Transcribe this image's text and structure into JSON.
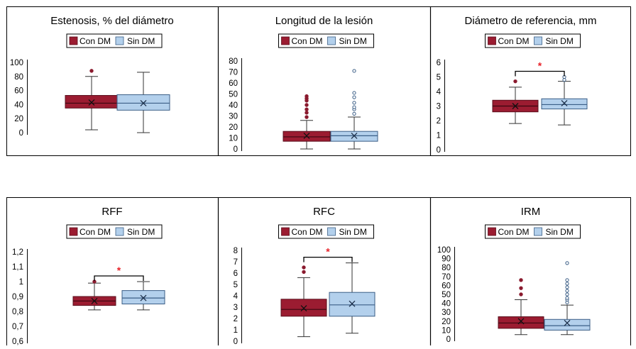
{
  "colors": {
    "con_dm_fill": "#9b1c31",
    "sin_dm_fill": "#b3d0ec",
    "sin_dm_stroke": "#3b5e86",
    "outlier_con": "#8a1a2e",
    "outlier_sin": "#3b5e86",
    "significance": "#e8242b",
    "frame": "#000000"
  },
  "chart_data": [
    {
      "type": "box",
      "title": "Estenosis, % del diámetro",
      "legend": [
        "Con DM",
        "Sin DM"
      ],
      "legend_placement": "top",
      "ylim": [
        0,
        100
      ],
      "yticks": [
        "0",
        "20",
        "40",
        "60",
        "80",
        "100"
      ],
      "ytick_values": [
        0,
        20,
        40,
        60,
        80,
        100
      ],
      "significance": "",
      "series": [
        {
          "name": "Con DM",
          "min": 4,
          "q1": 35,
          "median": 42,
          "mean": 43,
          "q3": 53,
          "max": 80,
          "outliers": [
            88
          ]
        },
        {
          "name": "Sin DM",
          "min": 0,
          "q1": 32,
          "median": 42,
          "mean": 42,
          "q3": 54,
          "max": 86,
          "outliers": []
        }
      ]
    },
    {
      "type": "box",
      "title": "Longitud de la lesión",
      "legend": [
        "Con DM",
        "Sin DM"
      ],
      "legend_placement": "top",
      "ylim": [
        0,
        80
      ],
      "yticks": [
        "0",
        "10",
        "20",
        "30",
        "40",
        "50",
        "60",
        "70",
        "80"
      ],
      "ytick_values": [
        0,
        10,
        20,
        30,
        40,
        50,
        60,
        70,
        80
      ],
      "significance": "",
      "series": [
        {
          "name": "Con DM",
          "min": 0,
          "q1": 7,
          "median": 11,
          "mean": 12,
          "q3": 16,
          "max": 26,
          "outliers": [
            29,
            33,
            36,
            40,
            44,
            46,
            48
          ]
        },
        {
          "name": "Sin DM",
          "min": 0,
          "q1": 7,
          "median": 12,
          "mean": 12,
          "q3": 16,
          "max": 29,
          "outliers": [
            32,
            36,
            38,
            42,
            47,
            51,
            71
          ]
        }
      ]
    },
    {
      "type": "box",
      "title": "Diámetro de referencia, mm",
      "legend": [
        "Con DM",
        "Sin DM"
      ],
      "legend_placement": "top",
      "ylim": [
        0,
        6
      ],
      "yticks": [
        "0",
        "1",
        "2",
        "3",
        "4",
        "5",
        "6"
      ],
      "ytick_values": [
        0,
        1,
        2,
        3,
        4,
        5,
        6
      ],
      "significance": "*",
      "series": [
        {
          "name": "Con DM",
          "min": 1.8,
          "q1": 2.6,
          "median": 3.0,
          "mean": 3.0,
          "q3": 3.4,
          "max": 4.3,
          "outliers": [
            4.7
          ]
        },
        {
          "name": "Sin DM",
          "min": 1.7,
          "q1": 2.8,
          "median": 3.1,
          "mean": 3.2,
          "q3": 3.5,
          "max": 4.7,
          "outliers": [
            4.8,
            5.0
          ]
        }
      ]
    },
    {
      "type": "box",
      "title": "RFF",
      "legend": [
        "Con DM",
        "Sin DM"
      ],
      "legend_placement": "top",
      "ylim": [
        0.6,
        1.2
      ],
      "yticks": [
        "0,6",
        "0,7",
        "0,8",
        "0,9",
        "1",
        "1,1",
        "1,2"
      ],
      "ytick_values": [
        0.6,
        0.7,
        0.8,
        0.9,
        1.0,
        1.1,
        1.2
      ],
      "significance": "*",
      "series": [
        {
          "name": "Con DM",
          "min": 0.81,
          "q1": 0.84,
          "median": 0.87,
          "mean": 0.87,
          "q3": 0.9,
          "max": 0.99,
          "outliers": [
            1.0
          ]
        },
        {
          "name": "Sin DM",
          "min": 0.81,
          "q1": 0.85,
          "median": 0.89,
          "mean": 0.89,
          "q3": 0.94,
          "max": 1.0,
          "outliers": []
        }
      ]
    },
    {
      "type": "box",
      "title": "RFC",
      "legend": [
        "Con DM",
        "Sin DM"
      ],
      "legend_placement": "top",
      "ylim": [
        0,
        8
      ],
      "yticks": [
        "0",
        "1",
        "2",
        "3",
        "4",
        "5",
        "6",
        "7",
        "8"
      ],
      "ytick_values": [
        0,
        1,
        2,
        3,
        4,
        5,
        6,
        7,
        8
      ],
      "significance": "*",
      "series": [
        {
          "name": "Con DM",
          "min": 0.4,
          "q1": 2.2,
          "median": 2.8,
          "mean": 2.9,
          "q3": 3.7,
          "max": 5.6,
          "outliers": [
            6.1,
            6.5
          ]
        },
        {
          "name": "Sin DM",
          "min": 0.7,
          "q1": 2.2,
          "median": 3.2,
          "mean": 3.3,
          "q3": 4.3,
          "max": 6.9,
          "outliers": []
        }
      ]
    },
    {
      "type": "box",
      "title": "IRM",
      "legend": [
        "Con DM",
        "Sin DM"
      ],
      "legend_placement": "top",
      "ylim": [
        0,
        100
      ],
      "yticks": [
        "0",
        "10",
        "20",
        "30",
        "40",
        "50",
        "60",
        "70",
        "80",
        "90",
        "100"
      ],
      "ytick_values": [
        0,
        10,
        20,
        30,
        40,
        50,
        60,
        70,
        80,
        90,
        100
      ],
      "significance": "",
      "series": [
        {
          "name": "Con DM",
          "min": 5,
          "q1": 12,
          "median": 18,
          "mean": 20,
          "q3": 25,
          "max": 44,
          "outliers": [
            50,
            57,
            66
          ]
        },
        {
          "name": "Sin DM",
          "min": 5,
          "q1": 10,
          "median": 15,
          "mean": 18,
          "q3": 22,
          "max": 38,
          "outliers": [
            41,
            44,
            46,
            50,
            54,
            58,
            62,
            66,
            85
          ]
        }
      ]
    }
  ]
}
